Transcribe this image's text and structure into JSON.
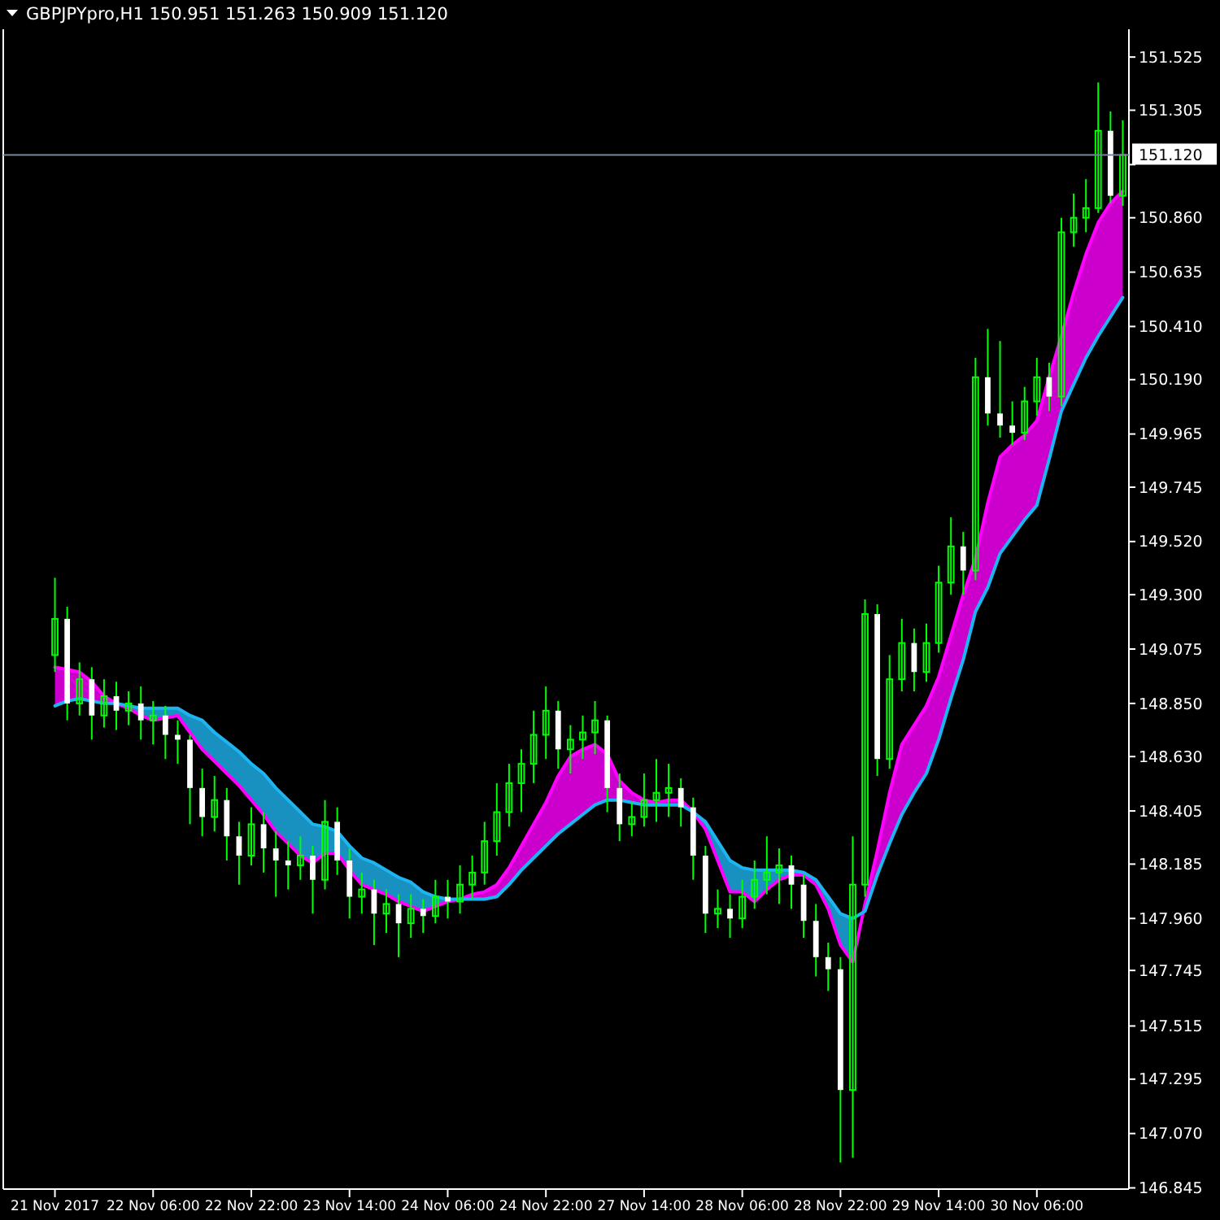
{
  "chart_data": {
    "type": "candlestick",
    "title": "GBPJPYpro,H1  150.951 151.263 150.909 151.120",
    "categories": [
      "21 Nov 2017",
      null,
      null,
      null,
      null,
      null,
      null,
      null,
      "22 Nov 06:00",
      null,
      null,
      null,
      null,
      null,
      null,
      null,
      "22 Nov 22:00",
      null,
      null,
      null,
      null,
      null,
      null,
      null,
      "23 Nov 14:00",
      null,
      null,
      null,
      null,
      null,
      null,
      null,
      "24 Nov 06:00",
      null,
      null,
      null,
      null,
      null,
      null,
      null,
      "24 Nov 22:00",
      null,
      null,
      null,
      null,
      null,
      null,
      null,
      "27 Nov 14:00",
      null,
      null,
      null,
      null,
      null,
      null,
      null,
      "28 Nov 06:00",
      null,
      null,
      null,
      null,
      null,
      null,
      null,
      "28 Nov 22:00",
      null,
      null,
      null,
      null,
      null,
      null,
      null,
      "29 Nov 14:00",
      null,
      null,
      null,
      null,
      null,
      null,
      null,
      "30 Nov 06:00",
      null,
      null,
      null,
      null,
      null,
      null,
      null
    ],
    "ohlc": [
      [
        149.05,
        149.37,
        148.98,
        149.2
      ],
      [
        149.2,
        149.25,
        148.78,
        148.85
      ],
      [
        148.85,
        149.02,
        148.8,
        148.95
      ],
      [
        148.95,
        149.0,
        148.7,
        148.8
      ],
      [
        148.8,
        148.95,
        148.75,
        148.88
      ],
      [
        148.88,
        148.94,
        148.74,
        148.82
      ],
      [
        148.82,
        148.9,
        148.76,
        148.85
      ],
      [
        148.85,
        148.92,
        148.7,
        148.78
      ],
      [
        148.78,
        148.86,
        148.68,
        148.8
      ],
      [
        148.8,
        148.84,
        148.62,
        148.72
      ],
      [
        148.72,
        148.78,
        148.6,
        148.7
      ],
      [
        148.7,
        148.72,
        148.35,
        148.5
      ],
      [
        148.5,
        148.58,
        148.3,
        148.38
      ],
      [
        148.38,
        148.55,
        148.32,
        148.45
      ],
      [
        148.45,
        148.5,
        148.2,
        148.3
      ],
      [
        148.3,
        148.36,
        148.1,
        148.22
      ],
      [
        148.22,
        148.42,
        148.18,
        148.35
      ],
      [
        148.35,
        148.4,
        148.15,
        148.25
      ],
      [
        148.25,
        148.32,
        148.05,
        148.2
      ],
      [
        148.2,
        148.28,
        148.08,
        148.18
      ],
      [
        148.18,
        148.3,
        148.12,
        148.22
      ],
      [
        148.22,
        148.26,
        147.98,
        148.12
      ],
      [
        148.12,
        148.45,
        148.08,
        148.36
      ],
      [
        148.36,
        148.42,
        148.14,
        148.2
      ],
      [
        148.2,
        148.25,
        147.96,
        148.05
      ],
      [
        148.05,
        148.15,
        147.98,
        148.08
      ],
      [
        148.08,
        148.12,
        147.85,
        147.98
      ],
      [
        147.98,
        148.08,
        147.9,
        148.02
      ],
      [
        148.02,
        148.06,
        147.8,
        147.94
      ],
      [
        147.94,
        148.06,
        147.88,
        148.0
      ],
      [
        148.0,
        148.04,
        147.9,
        147.97
      ],
      [
        147.97,
        148.12,
        147.94,
        148.05
      ],
      [
        148.05,
        148.12,
        147.96,
        148.03
      ],
      [
        148.03,
        148.18,
        147.98,
        148.1
      ],
      [
        148.1,
        148.22,
        148.04,
        148.15
      ],
      [
        148.15,
        148.36,
        148.1,
        148.28
      ],
      [
        148.28,
        148.52,
        148.22,
        148.4
      ],
      [
        148.4,
        148.6,
        148.34,
        148.52
      ],
      [
        148.52,
        148.66,
        148.4,
        148.6
      ],
      [
        148.6,
        148.82,
        148.52,
        148.72
      ],
      [
        148.72,
        148.92,
        148.62,
        148.82
      ],
      [
        148.82,
        148.86,
        148.58,
        148.66
      ],
      [
        148.66,
        148.76,
        148.56,
        148.7
      ],
      [
        148.7,
        148.8,
        148.62,
        148.73
      ],
      [
        148.73,
        148.86,
        148.64,
        148.78
      ],
      [
        148.78,
        148.8,
        148.4,
        148.5
      ],
      [
        148.5,
        148.56,
        148.28,
        148.35
      ],
      [
        148.35,
        148.44,
        148.3,
        148.38
      ],
      [
        148.38,
        148.56,
        148.34,
        148.45
      ],
      [
        148.45,
        148.62,
        148.36,
        148.48
      ],
      [
        148.48,
        148.6,
        148.38,
        148.5
      ],
      [
        148.5,
        148.54,
        148.34,
        148.42
      ],
      [
        148.42,
        148.46,
        148.12,
        148.22
      ],
      [
        148.22,
        148.26,
        147.9,
        147.98
      ],
      [
        147.98,
        148.08,
        147.92,
        148.0
      ],
      [
        148.0,
        148.06,
        147.88,
        147.96
      ],
      [
        147.96,
        148.12,
        147.92,
        148.05
      ],
      [
        148.05,
        148.2,
        148.0,
        148.12
      ],
      [
        148.12,
        148.3,
        148.06,
        148.15
      ],
      [
        148.15,
        148.25,
        148.02,
        148.18
      ],
      [
        148.18,
        148.22,
        148.0,
        148.1
      ],
      [
        148.1,
        148.14,
        147.88,
        147.95
      ],
      [
        147.95,
        148.02,
        147.72,
        147.8
      ],
      [
        147.8,
        147.86,
        147.66,
        147.75
      ],
      [
        147.75,
        147.8,
        146.95,
        147.25
      ],
      [
        147.25,
        148.3,
        146.97,
        148.1
      ],
      [
        148.1,
        149.28,
        148.05,
        149.22
      ],
      [
        149.22,
        149.26,
        148.55,
        148.62
      ],
      [
        148.62,
        149.05,
        148.58,
        148.95
      ],
      [
        148.95,
        149.2,
        148.9,
        149.1
      ],
      [
        149.1,
        149.16,
        148.9,
        148.98
      ],
      [
        148.98,
        149.18,
        148.94,
        149.1
      ],
      [
        149.1,
        149.42,
        149.06,
        149.35
      ],
      [
        149.35,
        149.62,
        149.3,
        149.5
      ],
      [
        149.5,
        149.56,
        149.3,
        149.4
      ],
      [
        149.4,
        150.28,
        149.36,
        150.2
      ],
      [
        150.2,
        150.4,
        150.0,
        150.05
      ],
      [
        150.05,
        150.35,
        149.95,
        150.0
      ],
      [
        150.0,
        150.1,
        149.92,
        149.97
      ],
      [
        149.97,
        150.16,
        149.94,
        150.1
      ],
      [
        150.1,
        150.28,
        150.04,
        150.2
      ],
      [
        150.2,
        150.26,
        150.06,
        150.12
      ],
      [
        150.12,
        150.86,
        150.08,
        150.8
      ],
      [
        150.8,
        150.96,
        150.74,
        150.86
      ],
      [
        150.86,
        151.02,
        150.8,
        150.9
      ],
      [
        150.9,
        151.42,
        150.88,
        151.22
      ],
      [
        151.22,
        151.3,
        150.92,
        150.951
      ],
      [
        150.951,
        151.263,
        150.909,
        151.12
      ]
    ],
    "series": [
      {
        "type": "line",
        "color": "#ff00ff",
        "values": [
          149.0,
          148.99,
          148.98,
          148.94,
          148.88,
          148.85,
          148.83,
          148.8,
          148.78,
          148.79,
          148.8,
          148.73,
          148.66,
          148.61,
          148.56,
          148.51,
          148.45,
          148.39,
          148.32,
          148.27,
          148.22,
          148.19,
          148.23,
          148.23,
          148.16,
          148.1,
          148.08,
          148.06,
          148.03,
          148.01,
          147.99,
          148.01,
          148.03,
          148.04,
          148.06,
          148.07,
          148.1,
          148.17,
          148.26,
          148.35,
          148.44,
          148.55,
          148.63,
          148.66,
          148.68,
          148.64,
          148.53,
          148.48,
          148.45,
          148.44,
          148.45,
          148.45,
          148.4,
          148.33,
          148.2,
          148.07,
          148.07,
          148.03,
          148.08,
          148.12,
          148.14,
          148.14,
          148.1,
          148.0,
          147.85,
          147.78,
          148.02,
          148.24,
          148.48,
          148.68,
          148.76,
          148.84,
          148.96,
          149.13,
          149.3,
          149.45,
          149.68,
          149.87,
          149.92,
          149.96,
          150.02,
          150.2,
          150.37,
          150.55,
          150.71,
          150.84,
          150.92,
          150.97
        ],
        "lower": [
          148.84,
          148.86,
          148.87,
          148.86,
          148.85,
          148.85,
          null,
          null,
          null,
          null,
          null,
          null,
          null,
          null,
          null,
          null,
          null,
          null,
          null,
          null,
          null,
          null,
          null,
          null,
          null,
          null,
          null,
          null,
          null,
          null,
          null,
          null,
          null,
          148.04,
          148.04,
          148.04,
          148.05,
          148.1,
          148.16,
          148.21,
          148.26,
          148.31,
          148.35,
          148.39,
          148.43,
          148.45,
          148.45,
          148.44,
          148.43,
          148.43,
          148.43,
          148.43,
          148.4,
          null,
          null,
          null,
          null,
          null,
          null,
          null,
          null,
          null,
          null,
          null,
          null,
          null,
          147.99,
          148.14,
          148.27,
          148.39,
          148.48,
          148.56,
          148.7,
          148.87,
          149.03,
          149.23,
          149.33,
          149.47,
          149.54,
          149.61,
          149.67,
          149.86,
          150.06,
          150.17,
          150.28,
          150.37,
          150.45,
          150.53
        ],
        "upper": [
          149.0,
          148.99,
          148.98,
          148.94,
          148.88,
          148.85,
          null,
          null,
          null,
          null,
          null,
          null,
          null,
          null,
          null,
          null,
          null,
          null,
          null,
          null,
          null,
          null,
          null,
          null,
          null,
          null,
          null,
          null,
          null,
          null,
          null,
          null,
          null,
          148.04,
          148.06,
          148.07,
          148.1,
          148.17,
          148.26,
          148.35,
          148.44,
          148.55,
          148.63,
          148.66,
          148.68,
          148.64,
          148.53,
          148.48,
          148.45,
          148.44,
          148.45,
          148.45,
          148.4,
          null,
          null,
          null,
          null,
          null,
          null,
          null,
          null,
          null,
          null,
          null,
          null,
          null,
          148.02,
          148.24,
          148.48,
          148.68,
          148.76,
          148.84,
          148.96,
          149.13,
          149.3,
          149.45,
          149.68,
          149.87,
          149.92,
          149.96,
          150.02,
          150.2,
          150.37,
          150.55,
          150.71,
          150.84,
          150.92,
          150.97
        ]
      },
      {
        "type": "line",
        "color": "#1eb4f0",
        "values": [
          148.84,
          148.86,
          148.87,
          148.86,
          148.85,
          148.85,
          148.84,
          148.83,
          148.83,
          148.83,
          148.83,
          148.8,
          148.78,
          148.73,
          148.69,
          148.65,
          148.6,
          148.56,
          148.5,
          148.45,
          148.4,
          148.35,
          148.34,
          148.32,
          148.26,
          148.21,
          148.19,
          148.16,
          148.13,
          148.11,
          148.07,
          148.05,
          148.04,
          148.04,
          148.04,
          148.04,
          148.05,
          148.1,
          148.16,
          148.21,
          148.26,
          148.31,
          148.35,
          148.39,
          148.43,
          148.45,
          148.45,
          148.44,
          148.43,
          148.43,
          148.43,
          148.43,
          148.4,
          148.36,
          148.28,
          148.2,
          148.17,
          148.16,
          148.16,
          148.16,
          148.16,
          148.15,
          148.12,
          148.05,
          147.98,
          147.96,
          147.99,
          148.14,
          148.27,
          148.39,
          148.48,
          148.56,
          148.7,
          148.87,
          149.03,
          149.23,
          149.33,
          149.47,
          149.54,
          149.61,
          149.67,
          149.86,
          150.06,
          150.17,
          150.28,
          150.37,
          150.45,
          150.53
        ],
        "lower": [
          null,
          null,
          null,
          null,
          null,
          148.85,
          148.83,
          148.8,
          148.78,
          148.79,
          148.8,
          148.73,
          148.66,
          148.61,
          148.56,
          148.51,
          148.45,
          148.39,
          148.32,
          148.27,
          148.22,
          148.19,
          148.23,
          148.23,
          148.16,
          148.1,
          148.08,
          148.06,
          148.03,
          148.01,
          147.99,
          148.01,
          148.03,
          148.04,
          null,
          null,
          null,
          null,
          null,
          null,
          null,
          null,
          null,
          null,
          null,
          null,
          null,
          null,
          null,
          null,
          null,
          null,
          148.4,
          148.33,
          148.2,
          148.07,
          148.07,
          148.03,
          148.08,
          148.12,
          148.14,
          148.14,
          148.1,
          148.0,
          147.85,
          147.78,
          null,
          null,
          null,
          null,
          null,
          null,
          null,
          null,
          null,
          null,
          null,
          null,
          null,
          null,
          null,
          null,
          null,
          null,
          null,
          null,
          null,
          null
        ],
        "upper": [
          null,
          null,
          null,
          null,
          null,
          148.85,
          148.84,
          148.83,
          148.83,
          148.83,
          148.83,
          148.8,
          148.78,
          148.73,
          148.69,
          148.65,
          148.6,
          148.56,
          148.5,
          148.45,
          148.4,
          148.35,
          148.34,
          148.32,
          148.26,
          148.21,
          148.19,
          148.16,
          148.13,
          148.11,
          148.07,
          148.05,
          148.04,
          148.04,
          null,
          null,
          null,
          null,
          null,
          null,
          null,
          null,
          null,
          null,
          null,
          null,
          null,
          null,
          null,
          null,
          null,
          null,
          148.4,
          148.36,
          148.28,
          148.2,
          148.17,
          148.16,
          148.16,
          148.16,
          148.16,
          148.15,
          148.12,
          148.05,
          147.98,
          147.96,
          null,
          null,
          null,
          null,
          null,
          null,
          null,
          null,
          null,
          null,
          null,
          null,
          null,
          null,
          null,
          null,
          null,
          null,
          null,
          null,
          null,
          null
        ]
      }
    ],
    "ylim": [
      146.84,
      151.64
    ],
    "yticks": [
      146.845,
      {
        "value": 147.07,
        "label": "147.070"
      },
      147.295,
      147.515,
      147.745,
      {
        "value": 147.96,
        "label": "147.960"
      },
      148.185,
      148.405,
      {
        "value": 148.63,
        "label": "148.630"
      },
      {
        "value": 148.85,
        "label": "148.850"
      },
      149.075,
      {
        "value": 149.3,
        "label": "149.300"
      },
      {
        "value": 149.52,
        "label": "149.520"
      },
      149.745,
      149.965,
      {
        "value": 150.19,
        "label": "150.190"
      },
      {
        "value": 150.41,
        "label": "150.410"
      },
      150.635,
      {
        "value": 150.86,
        "label": "150.860"
      },
      {
        "value": 151.08,
        "label": null
      },
      151.305,
      151.525
    ],
    "ref_lines": [
      {
        "axis": "y",
        "value": 151.12,
        "label": "151.120",
        "color": "#778899"
      }
    ]
  }
}
